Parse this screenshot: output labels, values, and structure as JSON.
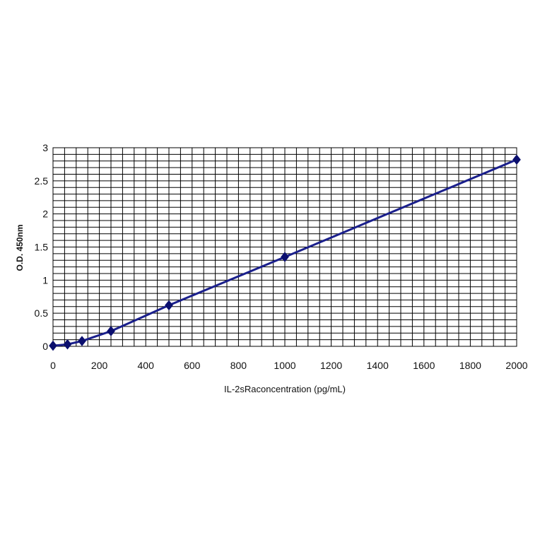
{
  "chart_data": {
    "type": "line",
    "title": "",
    "xlabel": "IL-2sRaconcentration (pg/mL)",
    "ylabel": "O.D. 450nm",
    "xlim": [
      0,
      2000
    ],
    "ylim": [
      0,
      3
    ],
    "xticks": [
      0,
      200,
      400,
      600,
      800,
      1000,
      1200,
      1400,
      1600,
      1800,
      2000
    ],
    "yticks": [
      0,
      0.5,
      1,
      1.5,
      2,
      2.5,
      3
    ],
    "ytick_labels": [
      "0",
      "0.5",
      "1",
      "1.5",
      "2",
      "2.5",
      "3"
    ],
    "grid": true,
    "minor_grid_x_step": 50,
    "minor_grid_y_step": 0.1,
    "series": [
      {
        "x": [
          0,
          62.5,
          125,
          250,
          500,
          1000,
          2000
        ],
        "y": [
          0.01,
          0.03,
          0.08,
          0.23,
          0.62,
          1.35,
          2.82
        ],
        "color": "#1a1f8c",
        "marker_color": "#0b0f6e"
      }
    ]
  }
}
